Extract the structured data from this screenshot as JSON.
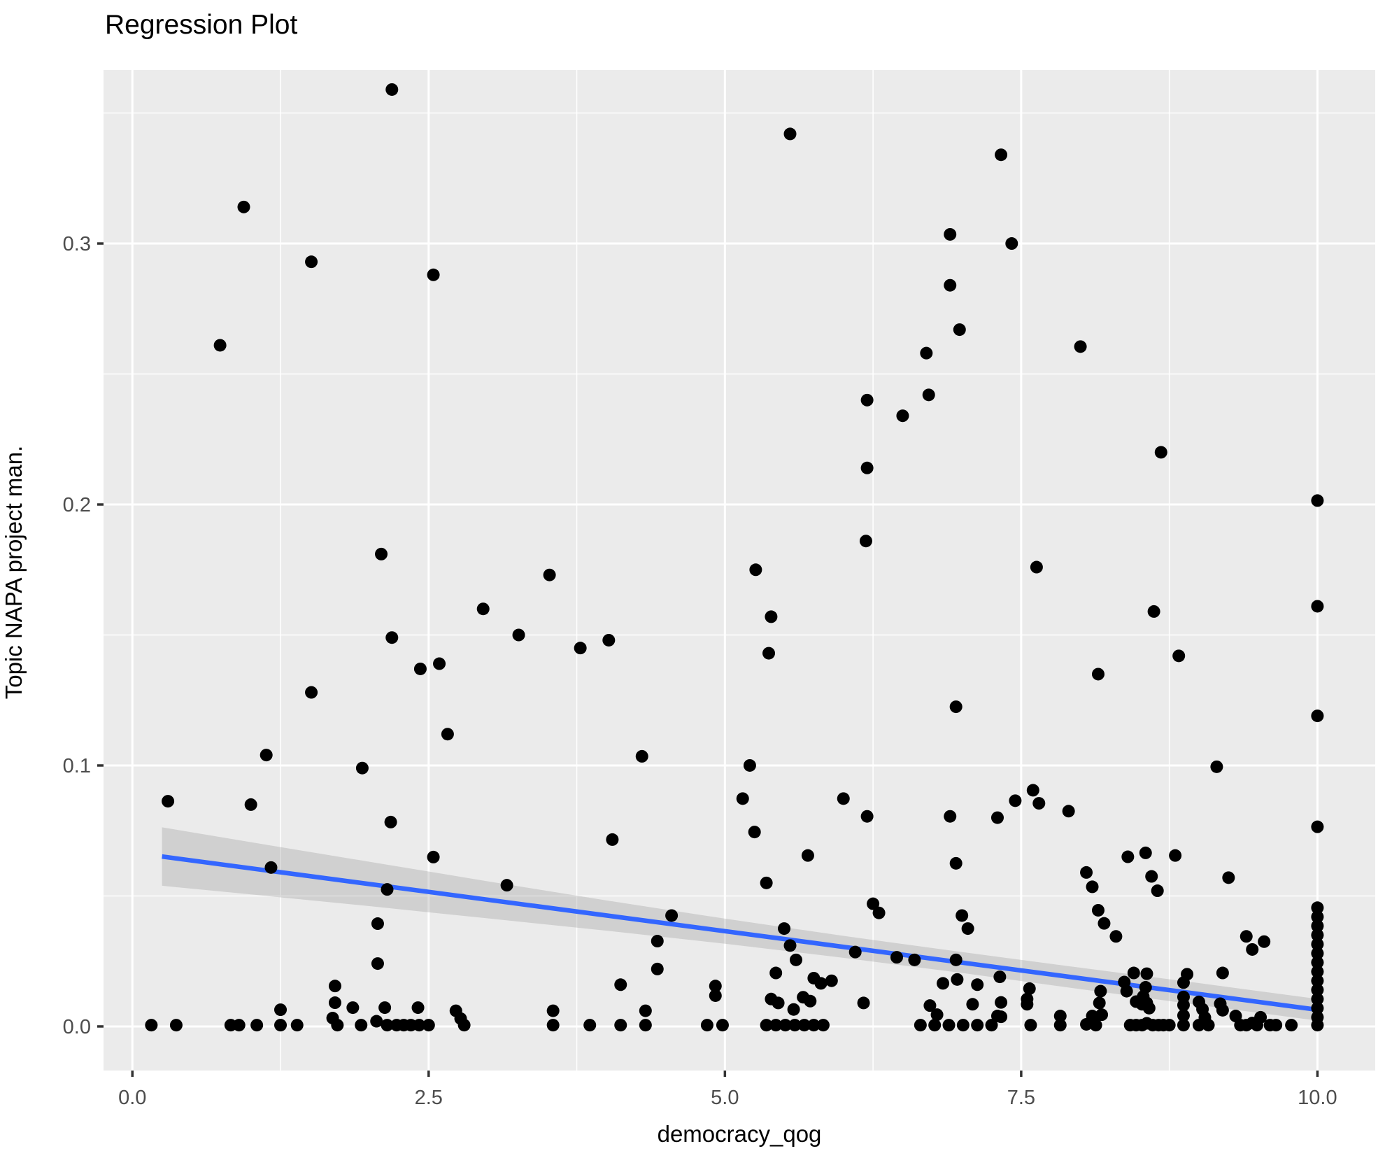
{
  "chart_data": {
    "type": "scatter",
    "title": "Regression Plot",
    "xlabel": "democracy_qog",
    "ylabel": "Topic NAPA project man.",
    "legend": "none",
    "grid": "white major and minor gridlines on gray panel",
    "xlim": [
      -0.2435,
      10.4875
    ],
    "ylim": [
      -0.0169,
      0.3665
    ],
    "x_ticks": [
      0.0,
      2.5,
      5.0,
      7.5,
      10.0
    ],
    "x_tick_labels": [
      "0.0",
      "2.5",
      "5.0",
      "7.5",
      "10.0"
    ],
    "x_minor_ticks": [
      1.25,
      3.75,
      6.25,
      8.75
    ],
    "y_ticks": [
      0.0,
      0.1,
      0.2,
      0.3
    ],
    "y_tick_labels": [
      "0.0",
      "0.1",
      "0.2",
      "0.3"
    ],
    "y_minor_ticks": [
      0.05,
      0.15,
      0.25,
      0.35
    ],
    "colors": {
      "panel": "#EBEBEB",
      "grid": "#FFFFFF",
      "point": "#000000",
      "line": "#3366FF",
      "band": "#999999",
      "tick_label": "#4D4D4D",
      "tick_mark": "#333333",
      "axis_title": "#000000"
    },
    "regression_line": {
      "x0": 0.25,
      "y0": 0.0651,
      "x1": 10.0,
      "y1": 0.0064,
      "color": "#3366FF"
    },
    "confidence_band": {
      "x": [
        0.25,
        1.0,
        2.0,
        3.0,
        4.0,
        5.0,
        6.0,
        7.0,
        8.0,
        9.0,
        10.0
      ],
      "center": [
        0.0651,
        0.0606,
        0.0546,
        0.0485,
        0.0425,
        0.0365,
        0.0305,
        0.0245,
        0.0184,
        0.0124,
        0.0064
      ],
      "half_width": [
        0.0112,
        0.01,
        0.0085,
        0.0071,
        0.0058,
        0.0048,
        0.0042,
        0.004,
        0.0041,
        0.0042,
        0.00415
      ],
      "opacity": 0.32
    },
    "points": [
      [
        2.19,
        0.359
      ],
      [
        5.55,
        0.342
      ],
      [
        7.33,
        0.334
      ],
      [
        0.94,
        0.314
      ],
      [
        7.42,
        0.3
      ],
      [
        6.9,
        0.3035
      ],
      [
        1.51,
        0.293
      ],
      [
        2.54,
        0.288
      ],
      [
        6.9,
        0.284
      ],
      [
        6.98,
        0.267
      ],
      [
        0.74,
        0.261
      ],
      [
        8.0,
        0.2605
      ],
      [
        6.7,
        0.258
      ],
      [
        6.72,
        0.242
      ],
      [
        6.5,
        0.234
      ],
      [
        6.2,
        0.24
      ],
      [
        6.2,
        0.214
      ],
      [
        8.68,
        0.22
      ],
      [
        10,
        0.2015
      ],
      [
        6.19,
        0.186
      ],
      [
        2.1,
        0.181
      ],
      [
        7.63,
        0.176
      ],
      [
        3.52,
        0.173
      ],
      [
        5.26,
        0.175
      ],
      [
        2.96,
        0.16
      ],
      [
        5.39,
        0.157
      ],
      [
        8.62,
        0.159
      ],
      [
        10,
        0.161
      ],
      [
        3.26,
        0.15
      ],
      [
        2.19,
        0.149
      ],
      [
        4.02,
        0.148
      ],
      [
        3.78,
        0.145
      ],
      [
        5.37,
        0.143
      ],
      [
        8.83,
        0.142
      ],
      [
        2.59,
        0.139
      ],
      [
        2.43,
        0.137
      ],
      [
        8.15,
        0.135
      ],
      [
        1.51,
        0.128
      ],
      [
        6.95,
        0.1225
      ],
      [
        10,
        0.119
      ],
      [
        2.66,
        0.112
      ],
      [
        1.13,
        0.104
      ],
      [
        4.3,
        0.1035
      ],
      [
        5.21,
        0.1
      ],
      [
        1.94,
        0.099
      ],
      [
        9.15,
        0.0995
      ],
      [
        7.6,
        0.0905
      ],
      [
        0.3,
        0.0863
      ],
      [
        1.0,
        0.085
      ],
      [
        5.15,
        0.0873
      ],
      [
        6.0,
        0.0873
      ],
      [
        7.45,
        0.0865
      ],
      [
        2.18,
        0.0783
      ],
      [
        6.2,
        0.0805
      ],
      [
        6.9,
        0.0805
      ],
      [
        7.3,
        0.08
      ],
      [
        7.65,
        0.0855
      ],
      [
        7.9,
        0.0825
      ],
      [
        10,
        0.0765
      ],
      [
        5.25,
        0.0745
      ],
      [
        4.05,
        0.0716
      ],
      [
        5.7,
        0.0655
      ],
      [
        2.54,
        0.0649
      ],
      [
        8.4,
        0.065
      ],
      [
        8.55,
        0.0665
      ],
      [
        8.8,
        0.0655
      ],
      [
        1.17,
        0.0609
      ],
      [
        6.95,
        0.0625
      ],
      [
        8.6,
        0.0575
      ],
      [
        9.25,
        0.057
      ],
      [
        3.16,
        0.0541
      ],
      [
        5.35,
        0.055
      ],
      [
        2.15,
        0.0525
      ],
      [
        8.65,
        0.052
      ],
      [
        8.1,
        0.0535
      ],
      [
        8.05,
        0.059
      ],
      [
        6.25,
        0.047
      ],
      [
        4.55,
        0.0425
      ],
      [
        6.3,
        0.0435
      ],
      [
        7.0,
        0.0425
      ],
      [
        8.15,
        0.0445
      ],
      [
        2.07,
        0.0394
      ],
      [
        8.2,
        0.0395
      ],
      [
        5.5,
        0.0375
      ],
      [
        7.05,
        0.0375
      ],
      [
        9.4,
        0.0345
      ],
      [
        8.3,
        0.0345
      ],
      [
        4.43,
        0.0327
      ],
      [
        9.55,
        0.0325
      ],
      [
        5.55,
        0.031
      ],
      [
        6.1,
        0.0285
      ],
      [
        9.45,
        0.0295
      ],
      [
        6.45,
        0.0265
      ],
      [
        6.6,
        0.0255
      ],
      [
        5.6,
        0.0255
      ],
      [
        6.95,
        0.0255
      ],
      [
        2.07,
        0.0241
      ],
      [
        4.43,
        0.022
      ],
      [
        10,
        0.0455
      ],
      [
        10,
        0.042
      ],
      [
        10,
        0.0385
      ],
      [
        10,
        0.035
      ],
      [
        10,
        0.0315
      ],
      [
        10,
        0.028
      ],
      [
        10,
        0.0245
      ],
      [
        10,
        0.021
      ],
      [
        10,
        0.0175
      ],
      [
        10,
        0.014
      ],
      [
        10,
        0.0105
      ],
      [
        10,
        0.007
      ],
      [
        10,
        0.0035
      ],
      [
        10,
        0.0005
      ],
      [
        0.16,
        0.0005
      ],
      [
        0.37,
        0.0005
      ],
      [
        0.83,
        0.0005
      ],
      [
        0.9,
        0.0005
      ],
      [
        1.05,
        0.0005
      ],
      [
        1.25,
        0.0064
      ],
      [
        1.25,
        0.0005
      ],
      [
        1.39,
        0.0005
      ],
      [
        1.71,
        0.0155
      ],
      [
        1.71,
        0.0091
      ],
      [
        1.69,
        0.0032
      ],
      [
        1.73,
        0.0005
      ],
      [
        1.86,
        0.0072
      ],
      [
        1.93,
        0.0005
      ],
      [
        2.06,
        0.002
      ],
      [
        2.13,
        0.0072
      ],
      [
        2.15,
        0.0005
      ],
      [
        2.23,
        0.0005
      ],
      [
        2.29,
        0.0005
      ],
      [
        2.35,
        0.0005
      ],
      [
        2.41,
        0.0072
      ],
      [
        2.42,
        0.0005
      ],
      [
        2.5,
        0.0005
      ],
      [
        2.73,
        0.006
      ],
      [
        2.77,
        0.003
      ],
      [
        2.8,
        0.0005
      ],
      [
        3.55,
        0.006
      ],
      [
        3.55,
        0.0005
      ],
      [
        3.86,
        0.0005
      ],
      [
        4.12,
        0.016
      ],
      [
        4.12,
        0.0005
      ],
      [
        4.33,
        0.006
      ],
      [
        4.33,
        0.0005
      ],
      [
        4.92,
        0.0155
      ],
      [
        4.92,
        0.0118
      ],
      [
        4.85,
        0.0005
      ],
      [
        4.98,
        0.0005
      ],
      [
        5.35,
        0.0005
      ],
      [
        5.43,
        0.0005
      ],
      [
        5.51,
        0.0005
      ],
      [
        5.59,
        0.0005
      ],
      [
        5.67,
        0.0005
      ],
      [
        5.75,
        0.0005
      ],
      [
        5.83,
        0.0005
      ],
      [
        5.39,
        0.0105
      ],
      [
        5.45,
        0.009
      ],
      [
        5.58,
        0.0065
      ],
      [
        5.66,
        0.0112
      ],
      [
        5.72,
        0.0097
      ],
      [
        5.75,
        0.0185
      ],
      [
        5.81,
        0.0165
      ],
      [
        5.9,
        0.0175
      ],
      [
        5.43,
        0.0205
      ],
      [
        6.17,
        0.009
      ],
      [
        6.65,
        0.0005
      ],
      [
        6.77,
        0.0005
      ],
      [
        6.89,
        0.0005
      ],
      [
        7.01,
        0.0005
      ],
      [
        7.13,
        0.0005
      ],
      [
        7.25,
        0.0005
      ],
      [
        6.73,
        0.008
      ],
      [
        6.79,
        0.0045
      ],
      [
        6.84,
        0.0165
      ],
      [
        6.96,
        0.018
      ],
      [
        7.09,
        0.0085
      ],
      [
        7.13,
        0.016
      ],
      [
        7.3,
        0.004
      ],
      [
        7.32,
        0.019
      ],
      [
        7.33,
        0.0092
      ],
      [
        7.33,
        0.0037
      ],
      [
        7.55,
        0.0085
      ],
      [
        7.55,
        0.0105
      ],
      [
        7.57,
        0.0145
      ],
      [
        7.58,
        0.0005
      ],
      [
        7.83,
        0.004
      ],
      [
        7.83,
        0.0005
      ],
      [
        8.05,
        0.0008
      ],
      [
        8.1,
        0.004
      ],
      [
        8.13,
        0.0005
      ],
      [
        8.18,
        0.0045
      ],
      [
        8.16,
        0.009
      ],
      [
        8.17,
        0.0135
      ],
      [
        8.37,
        0.017
      ],
      [
        8.39,
        0.0135
      ],
      [
        8.42,
        0.0005
      ],
      [
        8.47,
        0.0005
      ],
      [
        8.52,
        0.0005
      ],
      [
        8.56,
        0.0012
      ],
      [
        8.61,
        0.0005
      ],
      [
        8.66,
        0.0005
      ],
      [
        8.7,
        0.0005
      ],
      [
        8.75,
        0.0005
      ],
      [
        8.47,
        0.0095
      ],
      [
        8.52,
        0.0085
      ],
      [
        8.56,
        0.009
      ],
      [
        8.58,
        0.007
      ],
      [
        8.53,
        0.0115
      ],
      [
        8.55,
        0.015
      ],
      [
        8.87,
        0.0168
      ],
      [
        8.87,
        0.0113
      ],
      [
        8.87,
        0.0082
      ],
      [
        8.87,
        0.0042
      ],
      [
        8.87,
        0.0005
      ],
      [
        9.0,
        0.0094
      ],
      [
        9.03,
        0.0066
      ],
      [
        9.05,
        0.0034
      ],
      [
        9.08,
        0.0005
      ],
      [
        9.0,
        0.0005
      ],
      [
        9.18,
        0.0087
      ],
      [
        9.2,
        0.0062
      ],
      [
        9.31,
        0.004
      ],
      [
        9.35,
        0.0005
      ],
      [
        9.4,
        0.0005
      ],
      [
        9.45,
        0.0013
      ],
      [
        9.49,
        0.0005
      ],
      [
        9.52,
        0.0035
      ],
      [
        9.6,
        0.0005
      ],
      [
        9.65,
        0.0005
      ],
      [
        9.78,
        0.0005
      ],
      [
        8.45,
        0.0205
      ],
      [
        8.56,
        0.0202
      ],
      [
        8.9,
        0.02
      ],
      [
        9.2,
        0.0205
      ]
    ]
  }
}
